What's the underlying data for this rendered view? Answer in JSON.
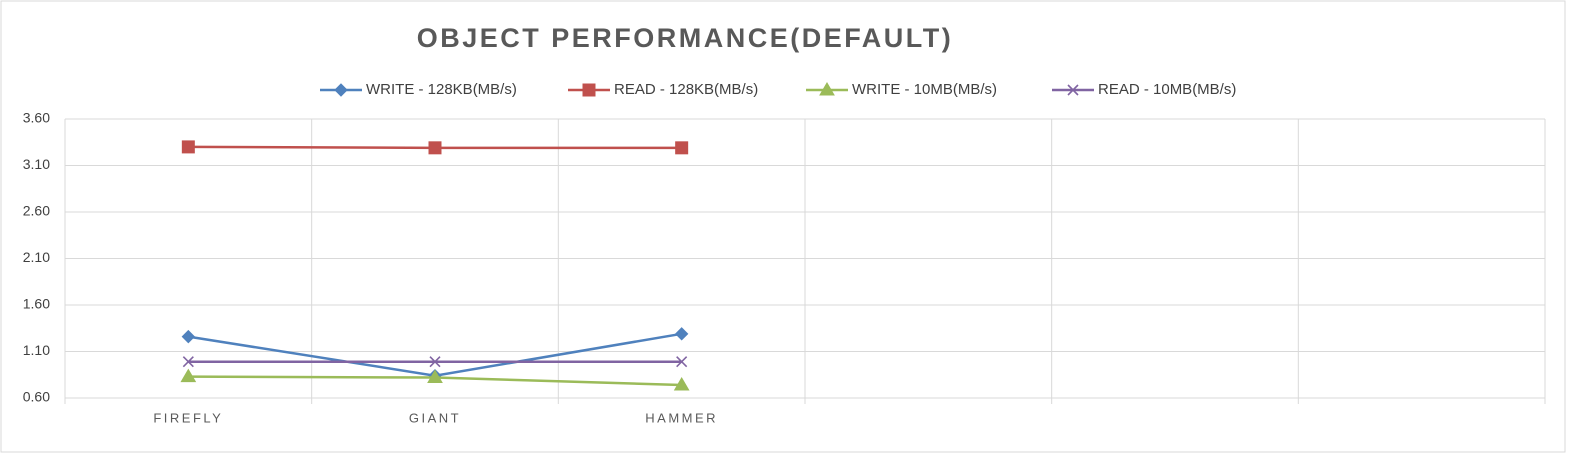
{
  "chart_data": {
    "type": "line",
    "title": "OBJECT PERFORMANCE(DEFAULT)",
    "categories": [
      "FIREFLY",
      "GIANT",
      "HAMMER",
      null,
      null,
      null
    ],
    "series": [
      {
        "name": "WRITE - 128KB(MB/s)",
        "color": "#4f81bd",
        "marker": "diamond",
        "values": [
          1.26,
          0.84,
          1.29,
          null,
          null,
          null
        ]
      },
      {
        "name": "READ - 128KB(MB/s)",
        "color": "#c0504d",
        "marker": "square",
        "values": [
          3.3,
          3.29,
          3.29,
          null,
          null,
          null
        ]
      },
      {
        "name": "WRITE - 10MB(MB/s)",
        "color": "#9bbb59",
        "marker": "triangle",
        "values": [
          0.83,
          0.82,
          0.74,
          null,
          null,
          null
        ]
      },
      {
        "name": "READ -  10MB(MB/s)",
        "color": "#8064a2",
        "marker": "x",
        "values": [
          0.99,
          0.99,
          0.99,
          null,
          null,
          null
        ]
      }
    ],
    "ylim": [
      0.6,
      3.6
    ],
    "yticks": [
      {
        "value": 0.6,
        "label": "0.60"
      },
      {
        "value": 1.1,
        "label": "1.10"
      },
      {
        "value": 1.6,
        "label": "1.60"
      },
      {
        "value": 2.1,
        "label": "2.10"
      },
      {
        "value": 2.6,
        "label": "2.60"
      },
      {
        "value": 3.1,
        "label": "3.10"
      },
      {
        "value": 3.6,
        "label": "3.60"
      }
    ],
    "grid": true,
    "legend": "top"
  }
}
